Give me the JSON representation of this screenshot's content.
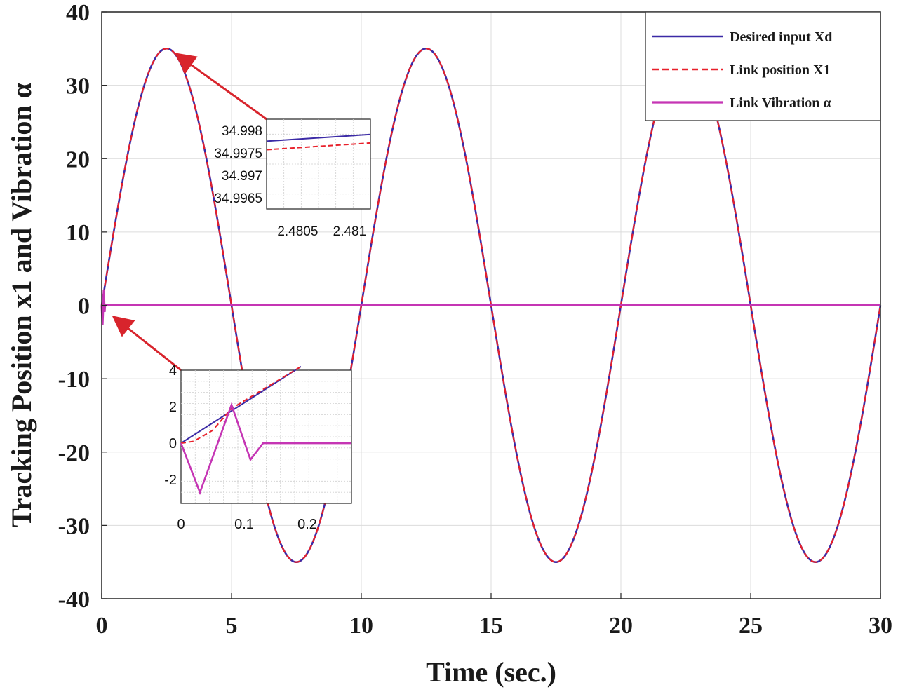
{
  "chart_data": {
    "type": "line",
    "xlabel": "Time (sec.)",
    "ylabel": "Tracking Position x1 and Vibration α",
    "xlim": [
      0,
      30
    ],
    "ylim": [
      -40,
      40
    ],
    "x_ticks": [
      "0",
      "5",
      "10",
      "15",
      "20",
      "25",
      "30"
    ],
    "y_ticks": [
      "-40",
      "-30",
      "-20",
      "-10",
      "0",
      "10",
      "20",
      "30",
      "40"
    ],
    "grid": true,
    "legend_position": "top-right",
    "colors": {
      "desired": "#3b2aa6",
      "link": "#e8202a",
      "vibration": "#c535b4",
      "arrow": "#d8242c"
    },
    "series": [
      {
        "name": "Desired input Xd",
        "style": "solid",
        "amplitude": 35,
        "period": 10,
        "x_range": [
          0,
          30
        ]
      },
      {
        "name": "Link position X1",
        "style": "dashed",
        "amplitude": 35,
        "period": 10,
        "x_range": [
          0,
          30
        ]
      },
      {
        "name": "Link Vibration α",
        "style": "solid",
        "x": [
          0,
          0.03,
          0.08,
          0.11,
          0.13,
          30
        ],
        "y": [
          0,
          -2.7,
          2.1,
          -0.9,
          0,
          0
        ]
      }
    ],
    "insets": [
      {
        "description": "zoom near peak",
        "x_ticks": [
          "2.4805",
          "2.481"
        ],
        "y_ticks": [
          "34.998",
          "34.9975",
          "34.997",
          "34.9965"
        ],
        "xlim": [
          2.4802,
          2.4812
        ],
        "ylim": [
          34.99625,
          34.99825
        ],
        "series": [
          {
            "name": "Desired input Xd",
            "x": [
              2.4802,
              2.4812
            ],
            "y": [
              34.99776,
              34.99791
            ]
          },
          {
            "name": "Link position X1",
            "x": [
              2.4802,
              2.4812
            ],
            "y": [
              34.99757,
              34.99772
            ]
          }
        ]
      },
      {
        "description": "zoom near start",
        "x_ticks": [
          "0",
          "0.1",
          "0.2"
        ],
        "y_ticks": [
          "4",
          "2",
          "0",
          "-2"
        ],
        "xlim": [
          0,
          0.27
        ],
        "ylim": [
          -3.3,
          4
        ],
        "series": [
          {
            "name": "Desired input Xd",
            "x": [
              0,
              0.19
            ],
            "y": [
              0,
              4.2
            ]
          },
          {
            "name": "Link position X1",
            "x": [
              0,
              0.02,
              0.05,
              0.08,
              0.19
            ],
            "y": [
              0,
              0.1,
              0.7,
              1.9,
              4.2
            ]
          },
          {
            "name": "Link Vibration α",
            "x": [
              0,
              0.03,
              0.08,
              0.11,
              0.13,
              0.27
            ],
            "y": [
              0,
              -2.7,
              2.1,
              -0.9,
              0,
              0
            ]
          }
        ]
      }
    ]
  }
}
